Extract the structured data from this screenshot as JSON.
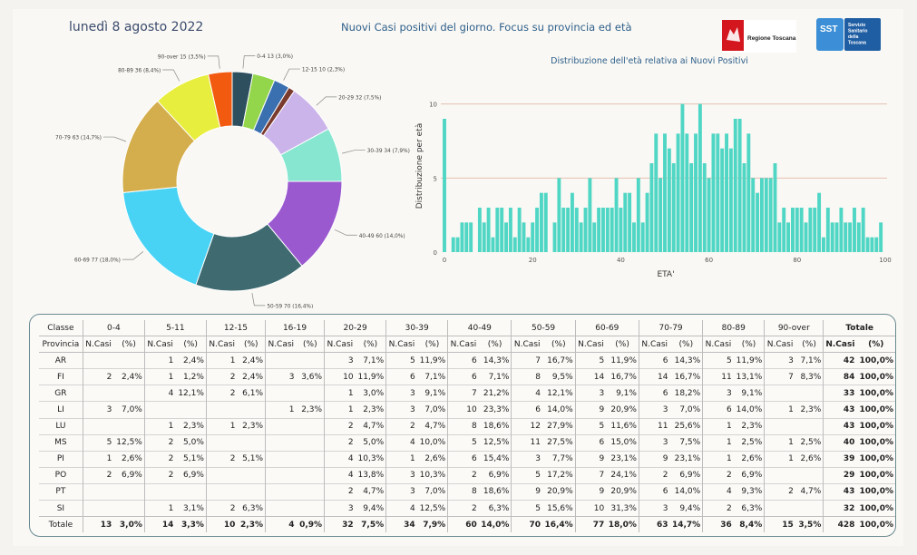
{
  "header": {
    "date": "lunedì 8 agosto 2022",
    "title": "Nuovi Casi positivi del giorno. Focus su provincia ed età",
    "logo_regione": "Regione Toscana",
    "logo_sst_short": "SST",
    "logo_sst_lines": [
      "Servizio",
      "Sanitario",
      "della",
      "Toscana"
    ]
  },
  "chart_data": [
    {
      "type": "pie",
      "donut": true,
      "slices": [
        {
          "label": "0-4",
          "value": 13,
          "pct": "3,0%",
          "color": "#2d4f5e"
        },
        {
          "label": "5-11",
          "value": 14,
          "pct": "3,3%",
          "color": "#93d64b"
        },
        {
          "label": "12-15",
          "value": 10,
          "pct": "2,3%",
          "color": "#3a6fb0"
        },
        {
          "label": "16-19",
          "value": 4,
          "pct": "0,9%",
          "color": "#7a3b2e"
        },
        {
          "label": "20-29",
          "value": 32,
          "pct": "7,5%",
          "color": "#cbb4ea"
        },
        {
          "label": "30-39",
          "value": 34,
          "pct": "7,9%",
          "color": "#86e6cf"
        },
        {
          "label": "40-49",
          "value": 60,
          "pct": "14,0%",
          "color": "#9b59d0"
        },
        {
          "label": "50-59",
          "value": 70,
          "pct": "16,4%",
          "color": "#3e6a70"
        },
        {
          "label": "60-69",
          "value": 77,
          "pct": "18,0%",
          "color": "#48d3f5"
        },
        {
          "label": "70-79",
          "value": 63,
          "pct": "14,7%",
          "color": "#d4ad4c"
        },
        {
          "label": "80-89",
          "value": 36,
          "pct": "8,4%",
          "color": "#e8ee3e"
        },
        {
          "label": "90-over",
          "value": 15,
          "pct": "3,5%",
          "color": "#f25a10"
        }
      ],
      "labels_text": [
        "0-4 13 (3,0%)",
        "12-15 10 (2,3%)",
        "20-29 32 (7,5%)",
        "30-39 34 (7,9%)",
        "40-49 60 (14,0%)",
        "50-59 70 (16,4%)",
        "60-69 77 (18,0%)",
        "70-79 63 (14,7%)",
        "80-89 36 (8,4%)",
        "90-over 15 (3,5%)"
      ]
    },
    {
      "type": "bar",
      "title": "Distribuzione dell'età relativa ai Nuovi Positivi",
      "xlabel": "ETA'",
      "ylabel": "Distribuzione per età",
      "xlim": [
        0,
        100
      ],
      "ylim": [
        0,
        12
      ],
      "xticks": [
        0,
        20,
        40,
        60,
        80,
        100
      ],
      "yticks": [
        0,
        5,
        10
      ],
      "color": "#4fd6c4",
      "x": [
        0,
        1,
        2,
        3,
        4,
        5,
        6,
        7,
        8,
        9,
        10,
        11,
        12,
        13,
        14,
        15,
        16,
        17,
        18,
        19,
        20,
        21,
        22,
        23,
        24,
        25,
        26,
        27,
        28,
        29,
        30,
        31,
        32,
        33,
        34,
        35,
        36,
        37,
        38,
        39,
        40,
        41,
        42,
        43,
        44,
        45,
        46,
        47,
        48,
        49,
        50,
        51,
        52,
        53,
        54,
        55,
        56,
        57,
        58,
        59,
        60,
        61,
        62,
        63,
        64,
        65,
        66,
        67,
        68,
        69,
        70,
        71,
        72,
        73,
        74,
        75,
        76,
        77,
        78,
        79,
        80,
        81,
        82,
        83,
        84,
        85,
        86,
        87,
        88,
        89,
        90,
        91,
        92,
        93,
        94,
        95,
        96,
        97,
        98,
        99
      ],
      "values": [
        9,
        0,
        1,
        1,
        2,
        2,
        2,
        0,
        3,
        2,
        3,
        1,
        3,
        3,
        2,
        3,
        1,
        3,
        2,
        1,
        2,
        3,
        4,
        4,
        0,
        2,
        5,
        3,
        3,
        4,
        3,
        2,
        3,
        5,
        2,
        3,
        3,
        3,
        3,
        5,
        3,
        4,
        4,
        2,
        5,
        2,
        4,
        6,
        8,
        5,
        8,
        7,
        6,
        8,
        10,
        8,
        6,
        8,
        10,
        6,
        5,
        8,
        8,
        7,
        8,
        7,
        9,
        9,
        6,
        8,
        5,
        4,
        5,
        5,
        5,
        6,
        2,
        3,
        2,
        3,
        3,
        3,
        2,
        3,
        3,
        4,
        1,
        3,
        2,
        2,
        3,
        2,
        2,
        3,
        2,
        3,
        1,
        1,
        1,
        2
      ]
    }
  ],
  "table": {
    "col_classe": "Classe",
    "col_provincia": "Provincia",
    "col_totale": "Totale",
    "sub_ncasi": "N.Casi",
    "sub_pct": "(%)",
    "groups": [
      "0-4",
      "5-11",
      "12-15",
      "16-19",
      "20-29",
      "30-39",
      "40-49",
      "50-59",
      "60-69",
      "70-79",
      "80-89",
      "90-over"
    ],
    "rows": [
      {
        "prov": "AR",
        "cells": [
          [
            "",
            ""
          ],
          [
            "1",
            "2,4%"
          ],
          [
            "1",
            "2,4%"
          ],
          [
            "",
            ""
          ],
          [
            "3",
            "7,1%"
          ],
          [
            "5",
            "11,9%"
          ],
          [
            "6",
            "14,3%"
          ],
          [
            "7",
            "16,7%"
          ],
          [
            "5",
            "11,9%"
          ],
          [
            "6",
            "14,3%"
          ],
          [
            "5",
            "11,9%"
          ],
          [
            "3",
            "7,1%"
          ]
        ],
        "tot": "42",
        "totpct": "100,0%"
      },
      {
        "prov": "FI",
        "cells": [
          [
            "2",
            "2,4%"
          ],
          [
            "1",
            "1,2%"
          ],
          [
            "2",
            "2,4%"
          ],
          [
            "3",
            "3,6%"
          ],
          [
            "10",
            "11,9%"
          ],
          [
            "6",
            "7,1%"
          ],
          [
            "6",
            "7,1%"
          ],
          [
            "8",
            "9,5%"
          ],
          [
            "14",
            "16,7%"
          ],
          [
            "14",
            "16,7%"
          ],
          [
            "11",
            "13,1%"
          ],
          [
            "7",
            "8,3%"
          ]
        ],
        "tot": "84",
        "totpct": "100,0%"
      },
      {
        "prov": "GR",
        "cells": [
          [
            "",
            ""
          ],
          [
            "4",
            "12,1%"
          ],
          [
            "2",
            "6,1%"
          ],
          [
            "",
            ""
          ],
          [
            "1",
            "3,0%"
          ],
          [
            "3",
            "9,1%"
          ],
          [
            "7",
            "21,2%"
          ],
          [
            "4",
            "12,1%"
          ],
          [
            "3",
            "9,1%"
          ],
          [
            "6",
            "18,2%"
          ],
          [
            "3",
            "9,1%"
          ],
          [
            "",
            ""
          ]
        ],
        "tot": "33",
        "totpct": "100,0%"
      },
      {
        "prov": "LI",
        "cells": [
          [
            "3",
            "7,0%"
          ],
          [
            "",
            ""
          ],
          [
            "",
            ""
          ],
          [
            "1",
            "2,3%"
          ],
          [
            "1",
            "2,3%"
          ],
          [
            "3",
            "7,0%"
          ],
          [
            "10",
            "23,3%"
          ],
          [
            "6",
            "14,0%"
          ],
          [
            "9",
            "20,9%"
          ],
          [
            "3",
            "7,0%"
          ],
          [
            "6",
            "14,0%"
          ],
          [
            "1",
            "2,3%"
          ]
        ],
        "tot": "43",
        "totpct": "100,0%"
      },
      {
        "prov": "LU",
        "cells": [
          [
            "",
            ""
          ],
          [
            "1",
            "2,3%"
          ],
          [
            "1",
            "2,3%"
          ],
          [
            "",
            ""
          ],
          [
            "2",
            "4,7%"
          ],
          [
            "2",
            "4,7%"
          ],
          [
            "8",
            "18,6%"
          ],
          [
            "12",
            "27,9%"
          ],
          [
            "5",
            "11,6%"
          ],
          [
            "11",
            "25,6%"
          ],
          [
            "1",
            "2,3%"
          ],
          [
            "",
            ""
          ]
        ],
        "tot": "43",
        "totpct": "100,0%"
      },
      {
        "prov": "MS",
        "cells": [
          [
            "5",
            "12,5%"
          ],
          [
            "2",
            "5,0%"
          ],
          [
            "",
            ""
          ],
          [
            "",
            ""
          ],
          [
            "2",
            "5,0%"
          ],
          [
            "4",
            "10,0%"
          ],
          [
            "5",
            "12,5%"
          ],
          [
            "11",
            "27,5%"
          ],
          [
            "6",
            "15,0%"
          ],
          [
            "3",
            "7,5%"
          ],
          [
            "1",
            "2,5%"
          ],
          [
            "1",
            "2,5%"
          ]
        ],
        "tot": "40",
        "totpct": "100,0%"
      },
      {
        "prov": "PI",
        "cells": [
          [
            "1",
            "2,6%"
          ],
          [
            "2",
            "5,1%"
          ],
          [
            "2",
            "5,1%"
          ],
          [
            "",
            ""
          ],
          [
            "4",
            "10,3%"
          ],
          [
            "1",
            "2,6%"
          ],
          [
            "6",
            "15,4%"
          ],
          [
            "3",
            "7,7%"
          ],
          [
            "9",
            "23,1%"
          ],
          [
            "9",
            "23,1%"
          ],
          [
            "1",
            "2,6%"
          ],
          [
            "1",
            "2,6%"
          ]
        ],
        "tot": "39",
        "totpct": "100,0%"
      },
      {
        "prov": "PO",
        "cells": [
          [
            "2",
            "6,9%"
          ],
          [
            "2",
            "6,9%"
          ],
          [
            "",
            ""
          ],
          [
            "",
            ""
          ],
          [
            "4",
            "13,8%"
          ],
          [
            "3",
            "10,3%"
          ],
          [
            "2",
            "6,9%"
          ],
          [
            "5",
            "17,2%"
          ],
          [
            "7",
            "24,1%"
          ],
          [
            "2",
            "6,9%"
          ],
          [
            "2",
            "6,9%"
          ],
          [
            "",
            ""
          ]
        ],
        "tot": "29",
        "totpct": "100,0%"
      },
      {
        "prov": "PT",
        "cells": [
          [
            "",
            ""
          ],
          [
            "",
            ""
          ],
          [
            "",
            ""
          ],
          [
            "",
            ""
          ],
          [
            "2",
            "4,7%"
          ],
          [
            "3",
            "7,0%"
          ],
          [
            "8",
            "18,6%"
          ],
          [
            "9",
            "20,9%"
          ],
          [
            "9",
            "20,9%"
          ],
          [
            "6",
            "14,0%"
          ],
          [
            "4",
            "9,3%"
          ],
          [
            "2",
            "4,7%"
          ]
        ],
        "tot": "43",
        "totpct": "100,0%"
      },
      {
        "prov": "SI",
        "cells": [
          [
            "",
            ""
          ],
          [
            "1",
            "3,1%"
          ],
          [
            "2",
            "6,3%"
          ],
          [
            "",
            ""
          ],
          [
            "3",
            "9,4%"
          ],
          [
            "4",
            "12,5%"
          ],
          [
            "2",
            "6,3%"
          ],
          [
            "5",
            "15,6%"
          ],
          [
            "10",
            "31,3%"
          ],
          [
            "3",
            "9,4%"
          ],
          [
            "2",
            "6,3%"
          ],
          [
            "",
            ""
          ]
        ],
        "tot": "32",
        "totpct": "100,0%"
      }
    ],
    "total_row": {
      "label": "Totale",
      "cells": [
        [
          "13",
          "3,0%"
        ],
        [
          "14",
          "3,3%"
        ],
        [
          "10",
          "2,3%"
        ],
        [
          "4",
          "0,9%"
        ],
        [
          "32",
          "7,5%"
        ],
        [
          "34",
          "7,9%"
        ],
        [
          "60",
          "14,0%"
        ],
        [
          "70",
          "16,4%"
        ],
        [
          "77",
          "18,0%"
        ],
        [
          "63",
          "14,7%"
        ],
        [
          "36",
          "8,4%"
        ],
        [
          "15",
          "3,5%"
        ]
      ],
      "tot": "428",
      "totpct": "100,0%"
    }
  }
}
